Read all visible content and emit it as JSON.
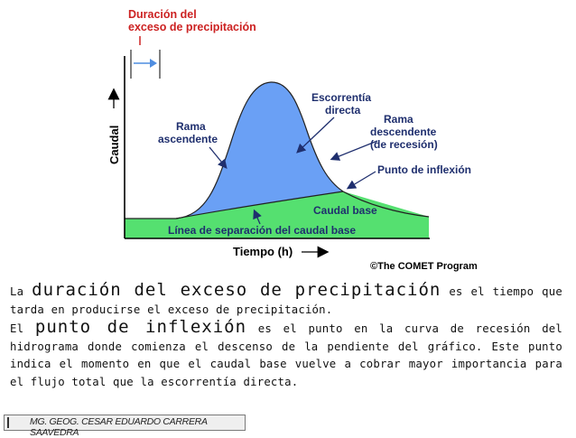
{
  "diagram": {
    "top_label_line1": "Duración del",
    "top_label_line2": "exceso de precipitación",
    "y_axis_label": "Caudal",
    "x_axis_label": "Tiempo (h)",
    "rama_ascendente_line1": "Rama",
    "rama_ascendente_line2": "ascendente",
    "escorrentia_line1": "Escorrentía",
    "escorrentia_line2": "directa",
    "rama_descendente_line1": "Rama",
    "rama_descendente_line2": "descendente",
    "rama_descendente_line3": "(de recesión)",
    "punto_inflexion": "Punto de inflexión",
    "caudal_base": "Caudal base",
    "linea_separacion": "Línea de separación del caudal base",
    "copyright": "©The COMET Program",
    "colors": {
      "title_red": "#cc2222",
      "runoff_blue": "#6aa0f5",
      "baseflow_green": "#55e070",
      "arrow_blue": "#4f8de0",
      "label_navy": "#1f2f6e"
    }
  },
  "text": {
    "p1_word1": "La",
    "p1_highlight": "duración del exceso de precipitación",
    "p1_rest": "es el tiempo que tarda en producirse el exceso de precipitación.",
    "p2_word1": "El",
    "p2_highlight": "punto de inflexión",
    "p2_rest": "es el punto en la curva de recesión del hidrograma donde comienza el descenso de la pendiente del gráfico. Este punto indica el momento en que el caudal base vuelve a cobrar mayor importancia para el flujo total que la escorrentía directa."
  },
  "footer": {
    "author": "MG. GEOG. CESAR EDUARDO CARRERA SAAVEDRA"
  }
}
